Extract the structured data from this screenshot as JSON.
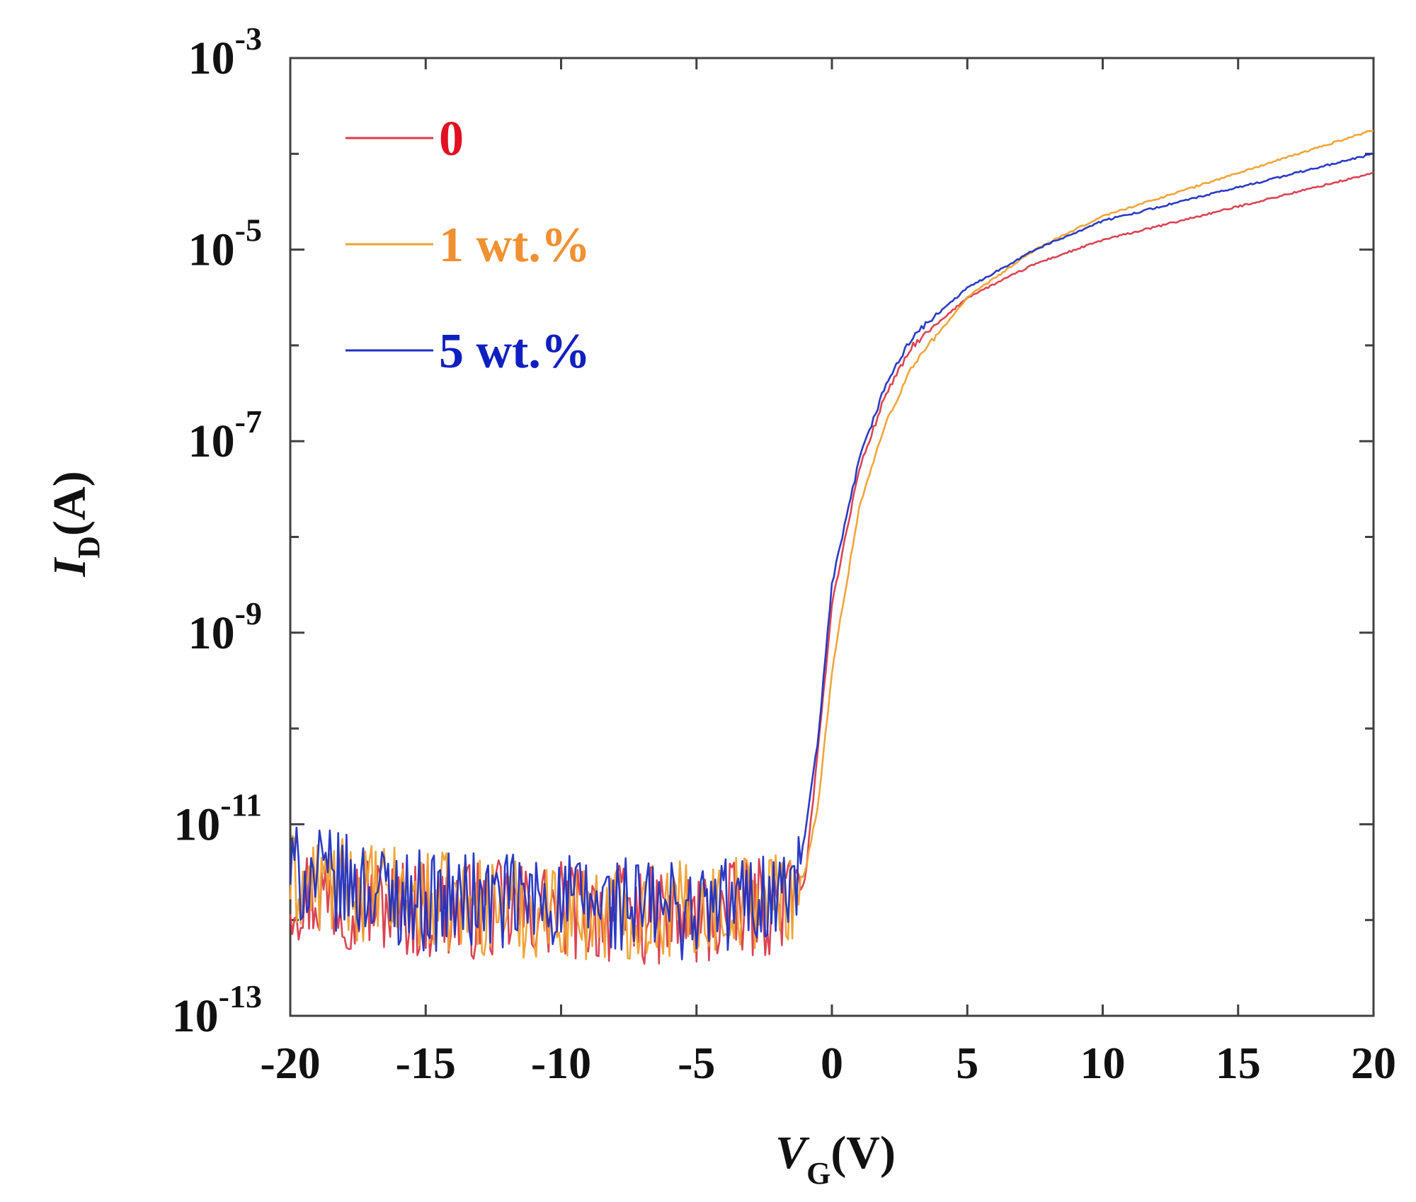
{
  "chart_data": {
    "type": "line",
    "title": "",
    "xlabel": {
      "main": "V",
      "sub": "G",
      "unit": "(V)"
    },
    "ylabel": {
      "main": "I",
      "sub": "D",
      "unit": "(A)"
    },
    "xlim": [
      -20,
      20
    ],
    "ylim_log10": [
      -13,
      -3
    ],
    "yscale": "log",
    "x_ticks": [
      -20,
      -15,
      -10,
      -5,
      0,
      5,
      10,
      15,
      20
    ],
    "x_tick_labels": [
      "-20",
      "-15",
      "-10",
      "-5",
      "0",
      "5",
      "10",
      "15",
      "20"
    ],
    "y_ticks_log10": [
      -13,
      -11,
      -9,
      -7,
      -5,
      -3
    ],
    "y_tick_labels": [
      {
        "base": "10",
        "exp": "-13"
      },
      {
        "base": "10",
        "exp": "-11"
      },
      {
        "base": "10",
        "exp": "-9"
      },
      {
        "base": "10",
        "exp": "-7"
      },
      {
        "base": "10",
        "exp": "-5"
      },
      {
        "base": "10",
        "exp": "-3"
      }
    ],
    "y_minor_ticks_log10": [
      -12,
      -10,
      -8,
      -6,
      -4
    ],
    "legend_position": "top-left",
    "series": [
      {
        "name": "0",
        "color": "#d93a4a",
        "x": [
          -20,
          -15,
          -10,
          -5,
          -1.5,
          -1.0,
          -0.5,
          0,
          1,
          2,
          3,
          5,
          7.5,
          10,
          15,
          20
        ],
        "log10_y": [
          -11.7,
          -11.9,
          -11.9,
          -12.0,
          -11.8,
          -11.6,
          -10.2,
          -8.7,
          -7.3,
          -6.5,
          -6.0,
          -5.5,
          -5.15,
          -4.9,
          -4.55,
          -4.2
        ]
      },
      {
        "name": "1 wt.%",
        "color": "#f0a030",
        "x": [
          -20,
          -15,
          -10,
          -5,
          -1.5,
          -1.0,
          -0.5,
          0,
          1,
          2,
          3,
          5,
          7.5,
          10,
          15,
          20
        ],
        "log10_y": [
          -11.6,
          -11.8,
          -11.9,
          -11.9,
          -11.7,
          -11.5,
          -10.8,
          -9.4,
          -7.7,
          -6.8,
          -6.2,
          -5.5,
          -5.0,
          -4.65,
          -4.2,
          -3.75
        ]
      },
      {
        "name": "5 wt.%",
        "color": "#2030c0",
        "x": [
          -20,
          -15,
          -10,
          -5,
          -1.5,
          -1.2,
          -0.5,
          0,
          1,
          2,
          3,
          5,
          7.5,
          10,
          15,
          20
        ],
        "log10_y": [
          -11.5,
          -11.8,
          -11.8,
          -11.9,
          -11.7,
          -11.5,
          -10.1,
          -8.5,
          -7.2,
          -6.4,
          -5.9,
          -5.4,
          -5.0,
          -4.7,
          -4.35,
          -4.0
        ]
      }
    ],
    "legend_label_colors": [
      "#e01020",
      "#f09030",
      "#1020c0"
    ]
  }
}
